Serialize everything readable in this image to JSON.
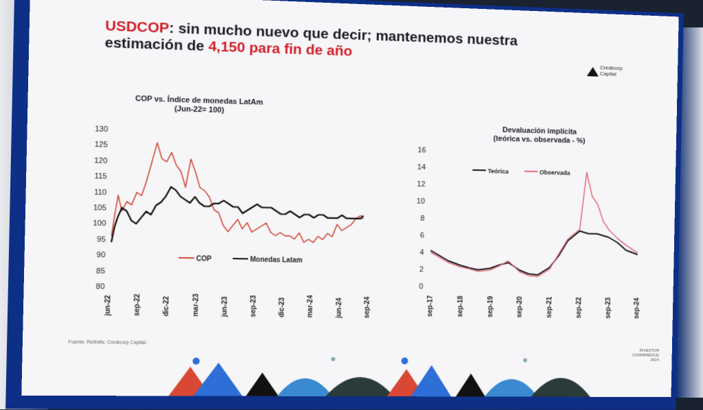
{
  "slide": {
    "title_prefix": "USDCOP",
    "title_mid": ": sin mucho nuevo que decir; mantenemos nuestra estimación de ",
    "title_value": "4,150 para fin de año",
    "logo_line1": "Credicorp",
    "logo_line2": "Capital",
    "source": "Fuente: Refinitiv, Credicorp Capital.",
    "conf_line1": "INVESTOR",
    "conf_line2": "CONFERENCE",
    "conf_line3": "2024"
  },
  "chart_data": [
    {
      "type": "line",
      "title": "COP vs. Índice de monedas LatAm",
      "subtitle": "(Jun-22= 100)",
      "x_ticks": [
        "jun-22",
        "sep-22",
        "dic-22",
        "mar-23",
        "jun-23",
        "sep-23",
        "dic-23",
        "mar-24",
        "jun-24",
        "sep-24"
      ],
      "y_ticks": [
        80,
        85,
        90,
        95,
        100,
        105,
        110,
        115,
        120,
        125,
        130
      ],
      "ylim": [
        80,
        130
      ],
      "legend_position": "bottom",
      "color_cop": "#d24a3a",
      "color_latam": "#111111",
      "series": [
        {
          "name": "COP",
          "x": [
            0,
            0.3,
            0.6,
            1.0,
            1.5,
            2.0,
            2.5,
            3.0,
            3.5,
            4.0,
            4.5,
            5.0,
            5.5,
            6.0,
            6.5,
            7.0,
            7.5,
            8.0,
            8.5,
            9.0,
            9.5,
            10.0,
            10.5,
            11.0,
            11.5,
            12.0,
            12.5,
            13.0,
            13.5,
            14.0,
            14.5,
            15.0,
            15.5,
            16.0,
            16.5,
            17.0,
            17.5,
            18.0,
            18.5,
            19.0,
            19.5,
            20.0,
            20.5,
            21.0,
            21.5,
            22.0,
            22.5,
            23.0,
            23.5,
            24.0,
            24.5,
            25.0,
            25.5,
            26.0,
            26.3
          ],
          "values": [
            96,
            103,
            109,
            104,
            107,
            106,
            110,
            109,
            114,
            120,
            126,
            121,
            120,
            123,
            119,
            117,
            112,
            121,
            117,
            112,
            111,
            109,
            105,
            104,
            100,
            98,
            100,
            102,
            99,
            101,
            98,
            99,
            100,
            101,
            98,
            97,
            98,
            97,
            97,
            96,
            98,
            95,
            96,
            95,
            97,
            96,
            98,
            97,
            101,
            99,
            100,
            101,
            103,
            104,
            103
          ]
        },
        {
          "name": "Monedas Latam",
          "x": [
            0,
            0.3,
            0.6,
            1.0,
            1.5,
            2.0,
            2.5,
            3.0,
            3.5,
            4.0,
            4.5,
            5.0,
            5.5,
            6.0,
            6.5,
            7.0,
            7.5,
            8.0,
            8.5,
            9.0,
            9.5,
            10.0,
            10.5,
            11.0,
            11.5,
            12.0,
            12.5,
            13.0,
            13.5,
            14.0,
            14.5,
            15.0,
            15.5,
            16.0,
            16.5,
            17.0,
            17.5,
            18.0,
            18.5,
            19.0,
            19.5,
            20.0,
            20.5,
            21.0,
            21.5,
            22.0,
            22.5,
            23.0,
            23.5,
            24.0,
            24.5,
            25.0,
            25.5,
            26.0,
            26.3
          ],
          "values": [
            94,
            99,
            102,
            105,
            104,
            101,
            100,
            102,
            104,
            103,
            106,
            107,
            109,
            112,
            111,
            109,
            108,
            107,
            109,
            107,
            106,
            106,
            107,
            107,
            108,
            107,
            106,
            106,
            104,
            105,
            106,
            107,
            106,
            106,
            106,
            105,
            104,
            104,
            105,
            104,
            103,
            104,
            104,
            103,
            104,
            104,
            103,
            103,
            103,
            104,
            103,
            103,
            103,
            103,
            104
          ]
        }
      ]
    },
    {
      "type": "line",
      "title": "Devaluación implícita",
      "subtitle": "(teórica vs. observada - %)",
      "x_ticks": [
        "sep-17",
        "sep-18",
        "sep-19",
        "sep-20",
        "sep-21",
        "sep-22",
        "sep-23",
        "sep-24"
      ],
      "y_ticks": [
        0,
        2,
        4,
        6,
        8,
        10,
        12,
        14,
        16
      ],
      "ylim": [
        0,
        16
      ],
      "legend_position": "top",
      "color_teorica": "#111111",
      "color_observada": "#e06b78",
      "series": [
        {
          "name": "Teórica",
          "x": [
            0,
            0.3,
            0.6,
            1.0,
            1.3,
            1.6,
            2.0,
            2.3,
            2.6,
            3.0,
            3.3,
            3.6,
            4.0,
            4.3,
            4.6,
            5.0,
            5.3,
            5.6,
            6.0,
            6.3,
            6.6,
            7.0
          ],
          "values": [
            4.2,
            3.6,
            3.0,
            2.5,
            2.2,
            2.0,
            2.2,
            2.6,
            2.9,
            2.0,
            1.6,
            1.5,
            2.4,
            3.8,
            5.6,
            6.8,
            6.5,
            6.5,
            6.1,
            5.5,
            4.6,
            4.1
          ]
        },
        {
          "name": "Observada",
          "x": [
            0,
            0.3,
            0.6,
            1.0,
            1.3,
            1.6,
            2.0,
            2.3,
            2.6,
            3.0,
            3.3,
            3.6,
            4.0,
            4.3,
            4.6,
            5.0,
            5.2,
            5.4,
            5.6,
            5.8,
            6.0,
            6.3,
            6.6,
            7.0
          ],
          "values": [
            4.0,
            3.4,
            2.8,
            2.3,
            2.1,
            1.8,
            2.0,
            2.5,
            3.1,
            1.8,
            1.4,
            1.3,
            2.2,
            4.0,
            5.8,
            7.0,
            13.8,
            11.0,
            10.0,
            8.0,
            7.0,
            6.0,
            5.2,
            4.3
          ]
        }
      ]
    }
  ]
}
